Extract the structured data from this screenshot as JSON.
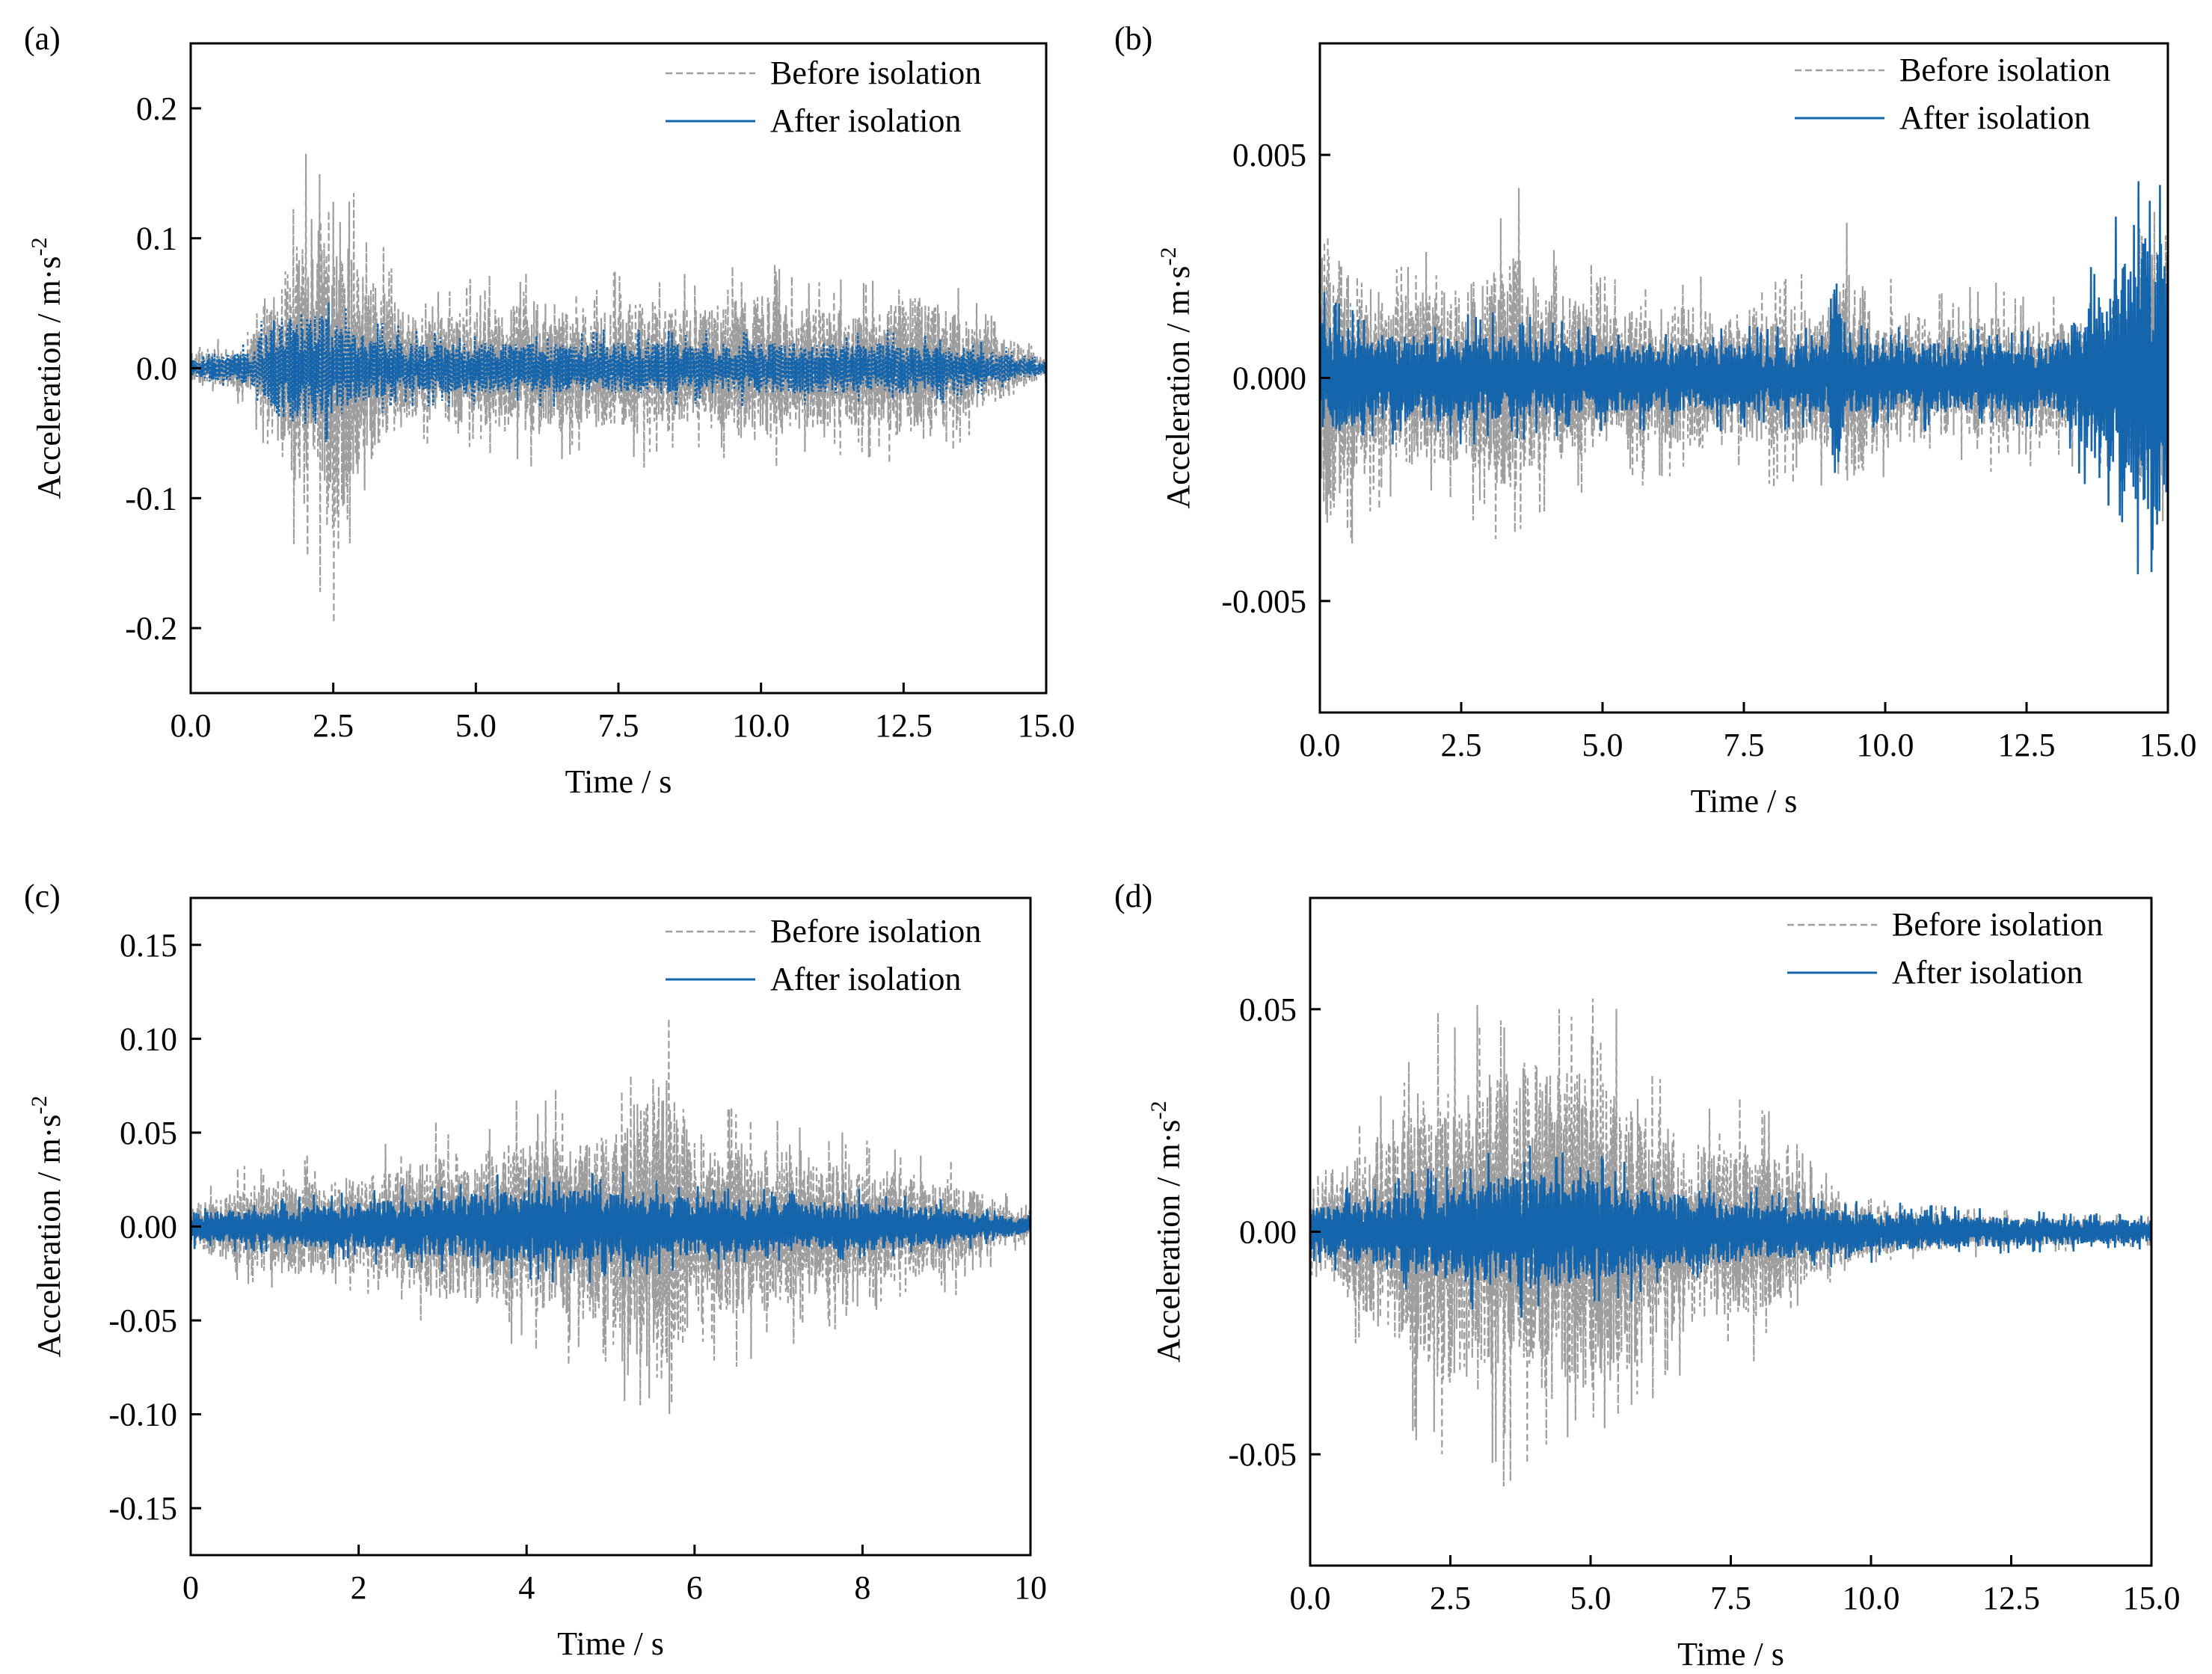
{
  "colors": {
    "before": "#9e9e9e",
    "after": "#1565ad",
    "axis": "#000000"
  },
  "legend": {
    "before_label": "Before isolation",
    "after_label": "After isolation"
  },
  "chart_data": [
    {
      "id": "a",
      "panel_label": "(a)",
      "type": "line",
      "xlabel": "Time / s",
      "ylabel": "Acceleration / m·s",
      "ylabel_sup": "-2",
      "xlim": [
        0,
        15
      ],
      "ylim": [
        -0.25,
        0.25
      ],
      "xticks": [
        0,
        2.5,
        5,
        7.5,
        10,
        12.5,
        15
      ],
      "xtick_labels": [
        "0.0",
        "2.5",
        "5.0",
        "7.5",
        "10.0",
        "12.5",
        "15.0"
      ],
      "yticks": [
        -0.2,
        -0.1,
        0,
        0.1,
        0.2
      ],
      "ytick_labels": [
        "-0.2",
        "-0.1",
        "0.0",
        "0.1",
        "0.2"
      ],
      "legend_position": "top-right",
      "series": [
        {
          "name": "Before isolation",
          "style": "dashed",
          "seed": 11,
          "envelope": [
            [
              0,
              0.02
            ],
            [
              1,
              0.03
            ],
            [
              1.5,
              0.09
            ],
            [
              2,
              0.17
            ],
            [
              2.5,
              0.2
            ],
            [
              2.8,
              0.14
            ],
            [
              3.3,
              0.1
            ],
            [
              4,
              0.06
            ],
            [
              5,
              0.07
            ],
            [
              6,
              0.08
            ],
            [
              7,
              0.07
            ],
            [
              8,
              0.08
            ],
            [
              9,
              0.07
            ],
            [
              10,
              0.09
            ],
            [
              11,
              0.07
            ],
            [
              12,
              0.07
            ],
            [
              12.8,
              0.09
            ],
            [
              13.5,
              0.06
            ],
            [
              14.5,
              0.03
            ],
            [
              15,
              0.01
            ]
          ]
        },
        {
          "name": "After isolation",
          "style": "dotted",
          "seed": 23,
          "envelope": [
            [
              0,
              0.01
            ],
            [
              1,
              0.02
            ],
            [
              1.5,
              0.06
            ],
            [
              2,
              0.07
            ],
            [
              2.5,
              0.06
            ],
            [
              3,
              0.04
            ],
            [
              4,
              0.03
            ],
            [
              6,
              0.03
            ],
            [
              8,
              0.03
            ],
            [
              10,
              0.03
            ],
            [
              12,
              0.03
            ],
            [
              13,
              0.03
            ],
            [
              14,
              0.02
            ],
            [
              15,
              0.008
            ]
          ]
        }
      ]
    },
    {
      "id": "b",
      "panel_label": "(b)",
      "type": "line",
      "xlabel": "Time / s",
      "ylabel": "Acceleration / m·s",
      "ylabel_sup": "-2",
      "xlim": [
        0,
        15
      ],
      "ylim": [
        -0.0075,
        0.0075
      ],
      "xticks": [
        0,
        2.5,
        5,
        7.5,
        10,
        12.5,
        15
      ],
      "xtick_labels": [
        "0.0",
        "2.5",
        "5.0",
        "7.5",
        "10.0",
        "12.5",
        "15.0"
      ],
      "yticks": [
        -0.005,
        0,
        0.005
      ],
      "ytick_labels": [
        "-0.005",
        "0.000",
        "0.005"
      ],
      "legend_position": "top-right",
      "series": [
        {
          "name": "Before isolation",
          "style": "dashed",
          "seed": 37,
          "envelope": [
            [
              0,
              0.0055
            ],
            [
              0.4,
              0.004
            ],
            [
              1,
              0.003
            ],
            [
              2,
              0.003
            ],
            [
              3,
              0.0035
            ],
            [
              3.5,
              0.0045
            ],
            [
              4,
              0.003
            ],
            [
              5,
              0.0025
            ],
            [
              6,
              0.0025
            ],
            [
              7,
              0.0025
            ],
            [
              8,
              0.0025
            ],
            [
              9,
              0.0025
            ],
            [
              9.2,
              0.004
            ],
            [
              10,
              0.0025
            ],
            [
              11,
              0.002
            ],
            [
              12,
              0.0022
            ],
            [
              13,
              0.002
            ],
            [
              14,
              0.002
            ],
            [
              14.9,
              0.005
            ],
            [
              15,
              0.005
            ]
          ]
        },
        {
          "name": "After isolation",
          "style": "solid",
          "seed": 41,
          "envelope": [
            [
              0,
              0.002
            ],
            [
              1,
              0.0015
            ],
            [
              3,
              0.0015
            ],
            [
              5,
              0.0012
            ],
            [
              7,
              0.0012
            ],
            [
              9,
              0.0012
            ],
            [
              9.1,
              0.004
            ],
            [
              9.3,
              0.0012
            ],
            [
              11,
              0.0012
            ],
            [
              13,
              0.0012
            ],
            [
              14.9,
              0.0055
            ],
            [
              15,
              0.004
            ]
          ]
        }
      ]
    },
    {
      "id": "c",
      "panel_label": "(c)",
      "type": "line",
      "xlabel": "Time / s",
      "ylabel": "Acceleration / m·s",
      "ylabel_sup": "-2",
      "xlim": [
        0,
        10
      ],
      "ylim": [
        -0.175,
        0.175
      ],
      "xticks": [
        0,
        2,
        4,
        6,
        8,
        10
      ],
      "xtick_labels": [
        "0",
        "2",
        "4",
        "6",
        "8",
        "10"
      ],
      "yticks": [
        -0.15,
        -0.1,
        -0.05,
        0,
        0.05,
        0.1,
        0.15
      ],
      "ytick_labels": [
        "-0.15",
        "-0.10",
        "-0.05",
        "0.00",
        "0.05",
        "0.10",
        "0.15"
      ],
      "legend_position": "top-right",
      "series": [
        {
          "name": "Before isolation",
          "style": "dashed",
          "seed": 53,
          "envelope": [
            [
              0,
              0.02
            ],
            [
              0.5,
              0.03
            ],
            [
              1,
              0.04
            ],
            [
              2,
              0.04
            ],
            [
              3,
              0.06
            ],
            [
              4,
              0.07
            ],
            [
              5,
              0.08
            ],
            [
              5.6,
              0.13
            ],
            [
              6,
              0.08
            ],
            [
              7,
              0.07
            ],
            [
              8,
              0.05
            ],
            [
              9,
              0.04
            ],
            [
              10,
              0.01
            ]
          ]
        },
        {
          "name": "After isolation",
          "style": "solid",
          "seed": 61,
          "envelope": [
            [
              0,
              0.012
            ],
            [
              1,
              0.015
            ],
            [
              2,
              0.02
            ],
            [
              3,
              0.025
            ],
            [
              4,
              0.03
            ],
            [
              5,
              0.03
            ],
            [
              6,
              0.025
            ],
            [
              7,
              0.02
            ],
            [
              8,
              0.02
            ],
            [
              9,
              0.015
            ],
            [
              10,
              0.006
            ]
          ]
        }
      ]
    },
    {
      "id": "d",
      "panel_label": "(d)",
      "type": "line",
      "xlabel": "Time / s",
      "ylabel": "Acceleration / m·s",
      "ylabel_sup": "-2",
      "xlim": [
        0,
        15
      ],
      "ylim": [
        -0.075,
        0.075
      ],
      "xticks": [
        0,
        2.5,
        5,
        7.5,
        10,
        12.5,
        15
      ],
      "xtick_labels": [
        "0.0",
        "2.5",
        "5.0",
        "7.5",
        "10.0",
        "12.5",
        "15.0"
      ],
      "yticks": [
        -0.05,
        0,
        0.05
      ],
      "ytick_labels": [
        "-0.05",
        "0.00",
        "0.05"
      ],
      "legend_position": "top-right",
      "series": [
        {
          "name": "Before isolation",
          "style": "dashed",
          "seed": 71,
          "envelope": [
            [
              0,
              0.01
            ],
            [
              1,
              0.03
            ],
            [
              2,
              0.05
            ],
            [
              3,
              0.055
            ],
            [
              4,
              0.06
            ],
            [
              5,
              0.055
            ],
            [
              6,
              0.045
            ],
            [
              7,
              0.03
            ],
            [
              8,
              0.03
            ],
            [
              9,
              0.015
            ],
            [
              10,
              0.008
            ],
            [
              12.5,
              0.005
            ],
            [
              15,
              0.004
            ]
          ]
        },
        {
          "name": "After isolation",
          "style": "solid",
          "seed": 83,
          "envelope": [
            [
              0,
              0.008
            ],
            [
              1,
              0.012
            ],
            [
              2,
              0.015
            ],
            [
              3,
              0.018
            ],
            [
              4,
              0.02
            ],
            [
              5,
              0.018
            ],
            [
              6,
              0.015
            ],
            [
              7,
              0.012
            ],
            [
              8,
              0.01
            ],
            [
              10,
              0.007
            ],
            [
              12.5,
              0.005
            ],
            [
              15,
              0.004
            ]
          ]
        }
      ]
    }
  ]
}
